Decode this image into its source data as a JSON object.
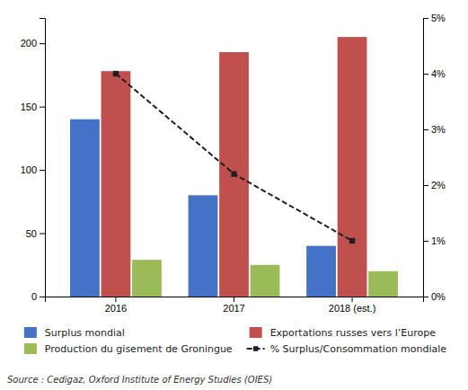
{
  "chart_data": {
    "type": "bar",
    "categories": [
      "2016",
      "2017",
      "2018 (est.)"
    ],
    "series": [
      {
        "name": "Surplus mondial",
        "color": "#4472C4",
        "values": [
          140,
          80,
          40
        ]
      },
      {
        "name": "Exportations russes vers l’Europe",
        "color": "#C0504D",
        "values": [
          178,
          193,
          205
        ]
      },
      {
        "name": "Production du gisement de Groningue",
        "color": "#9BBB59",
        "values": [
          29,
          25,
          20
        ]
      },
      {
        "name": "% Surplus/Consommation mondiale",
        "color": "#1F1F1F",
        "values": [
          4.0,
          2.2,
          1.0
        ],
        "type": "line",
        "axis": "y2",
        "marker": "square",
        "line_style": "dashed"
      }
    ],
    "ylim": [
      0,
      220
    ],
    "yticks": [
      0,
      50,
      100,
      150,
      200
    ],
    "y2lim": [
      0,
      5
    ],
    "y2ticks": [
      {
        "value": 0,
        "label": "0%"
      },
      {
        "value": 1,
        "label": "1%"
      },
      {
        "value": 2,
        "label": "2%"
      },
      {
        "value": 3,
        "label": "3%"
      },
      {
        "value": 4,
        "label": "4%"
      },
      {
        "value": 5,
        "label": "5%"
      }
    ],
    "grid": false,
    "legend": "bottom",
    "annotations": [
      "Source : Cedigaz, Oxford Institute of Energy Studies (OIES)"
    ]
  }
}
